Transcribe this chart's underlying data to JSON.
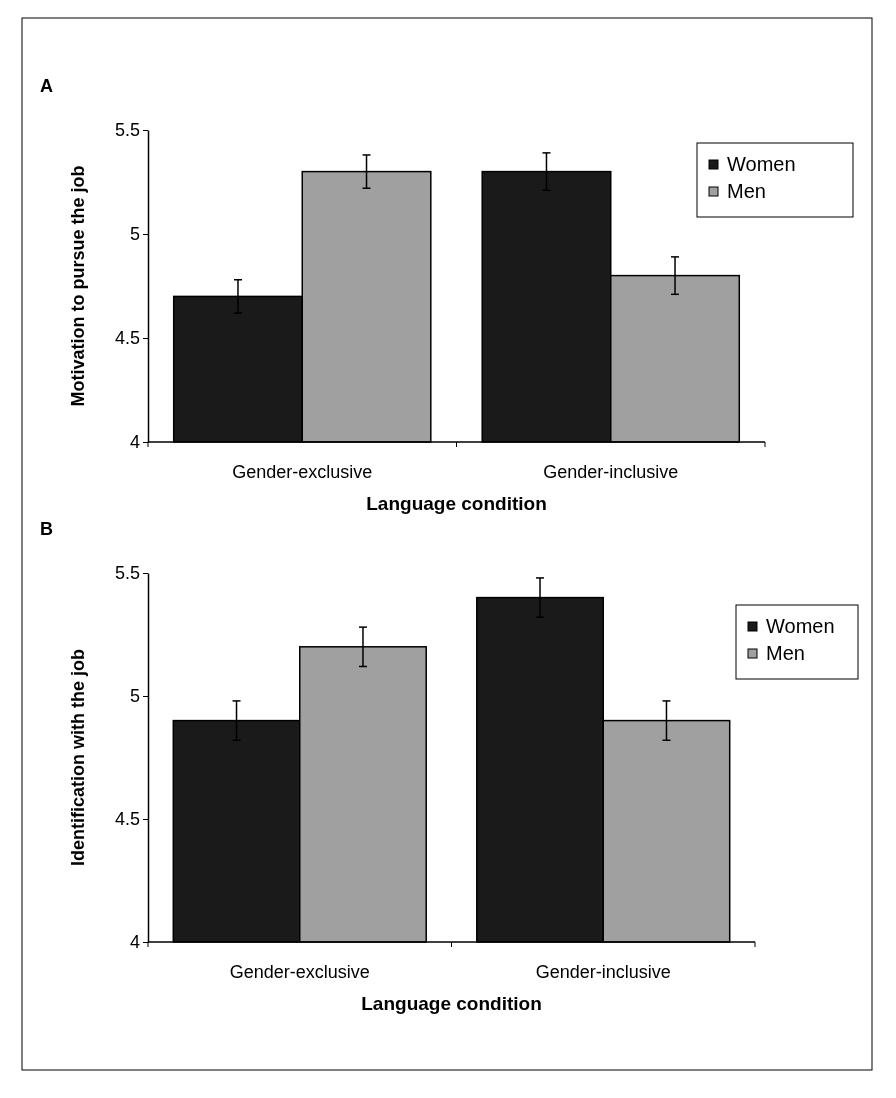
{
  "chart_data": [
    {
      "type": "bar",
      "title": "A",
      "xlabel": "Language condition",
      "ylabel": "Motivation to pursue the job",
      "categories": [
        "Gender-exclusive",
        "Gender-inclusive"
      ],
      "ylim": [
        4,
        5.5
      ],
      "yticks": [
        4,
        4.5,
        5,
        5.5
      ],
      "legend": "top right",
      "grid": false,
      "series": [
        {
          "name": "Women",
          "color": "#1a1a1a",
          "values": [
            4.7,
            5.3
          ],
          "errors": [
            0.08,
            0.09
          ]
        },
        {
          "name": "Men",
          "color": "#a0a0a0",
          "values": [
            5.3,
            4.8
          ],
          "errors": [
            0.08,
            0.09
          ]
        }
      ]
    },
    {
      "type": "bar",
      "title": "B",
      "xlabel": "Language condition",
      "ylabel": "Identification with the job",
      "categories": [
        "Gender-exclusive",
        "Gender-inclusive"
      ],
      "ylim": [
        4,
        5.5
      ],
      "yticks": [
        4,
        4.5,
        5,
        5.5
      ],
      "legend": "top right",
      "grid": false,
      "series": [
        {
          "name": "Women",
          "color": "#1a1a1a",
          "values": [
            4.9,
            5.4
          ],
          "errors": [
            0.08,
            0.08
          ]
        },
        {
          "name": "Men",
          "color": "#a0a0a0",
          "values": [
            5.2,
            4.9
          ],
          "errors": [
            0.08,
            0.08
          ]
        }
      ]
    }
  ]
}
